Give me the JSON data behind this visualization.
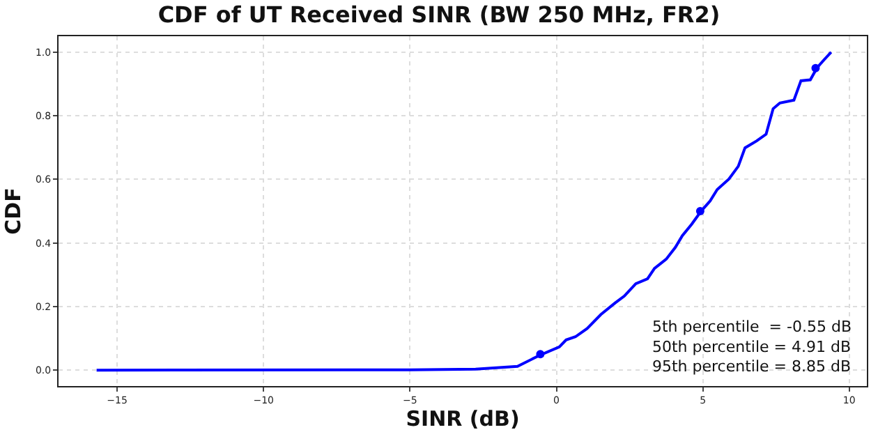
{
  "chart_data": {
    "type": "line",
    "title": "CDF of UT Received SINR (BW 250 MHz, FR2)",
    "xlabel": "SINR (dB)",
    "ylabel": "CDF",
    "xlim": [
      -17,
      10.6
    ],
    "xticks": [
      -15,
      -10,
      -5,
      0,
      5,
      10
    ],
    "ylim": [
      -0.05,
      1.05
    ],
    "yticks": [
      {
        "value": 0,
        "label": "0.0"
      },
      {
        "value": 0.2,
        "label": "0.2"
      },
      {
        "value": 0.4,
        "label": "0.4"
      },
      {
        "value": 0.6,
        "label": "0.6"
      },
      {
        "value": 0.8,
        "label": "0.8"
      },
      {
        "value": 1,
        "label": "1.0"
      }
    ],
    "grid": true,
    "line_style": "solid",
    "series": [
      {
        "color": "#0000ff",
        "marker": "none",
        "x": [
          -15.7,
          -5,
          -2.76,
          -1.33,
          -0.54,
          0.1,
          0.33,
          0.65,
          1.05,
          1.52,
          2.0,
          2.32,
          2.71,
          3.11,
          3.35,
          3.75,
          4.06,
          4.3,
          4.62,
          4.94,
          5.25,
          5.49,
          5.89,
          6.21,
          6.44,
          6.84,
          7.16,
          7.4,
          7.63,
          8.11,
          8.35,
          8.67,
          8.9,
          9.14,
          9.38
        ],
        "values": [
          0,
          0.001,
          0.003,
          0.012,
          0.048,
          0.073,
          0.095,
          0.105,
          0.131,
          0.175,
          0.211,
          0.233,
          0.272,
          0.287,
          0.32,
          0.349,
          0.386,
          0.423,
          0.459,
          0.5,
          0.532,
          0.568,
          0.601,
          0.641,
          0.699,
          0.721,
          0.742,
          0.822,
          0.84,
          0.849,
          0.91,
          0.913,
          0.951,
          0.976,
          1.0
        ]
      },
      {
        "type": "scatter",
        "color": "#0000ff",
        "marker": "circle",
        "x": [
          -0.55,
          4.91,
          8.85
        ],
        "values": [
          0.05,
          0.5,
          0.95
        ]
      }
    ],
    "annotations": [
      "5th percentile  = -0.55 dB\n50th percentile = 4.91 dB\n95th percentile = 8.85 dB"
    ]
  }
}
